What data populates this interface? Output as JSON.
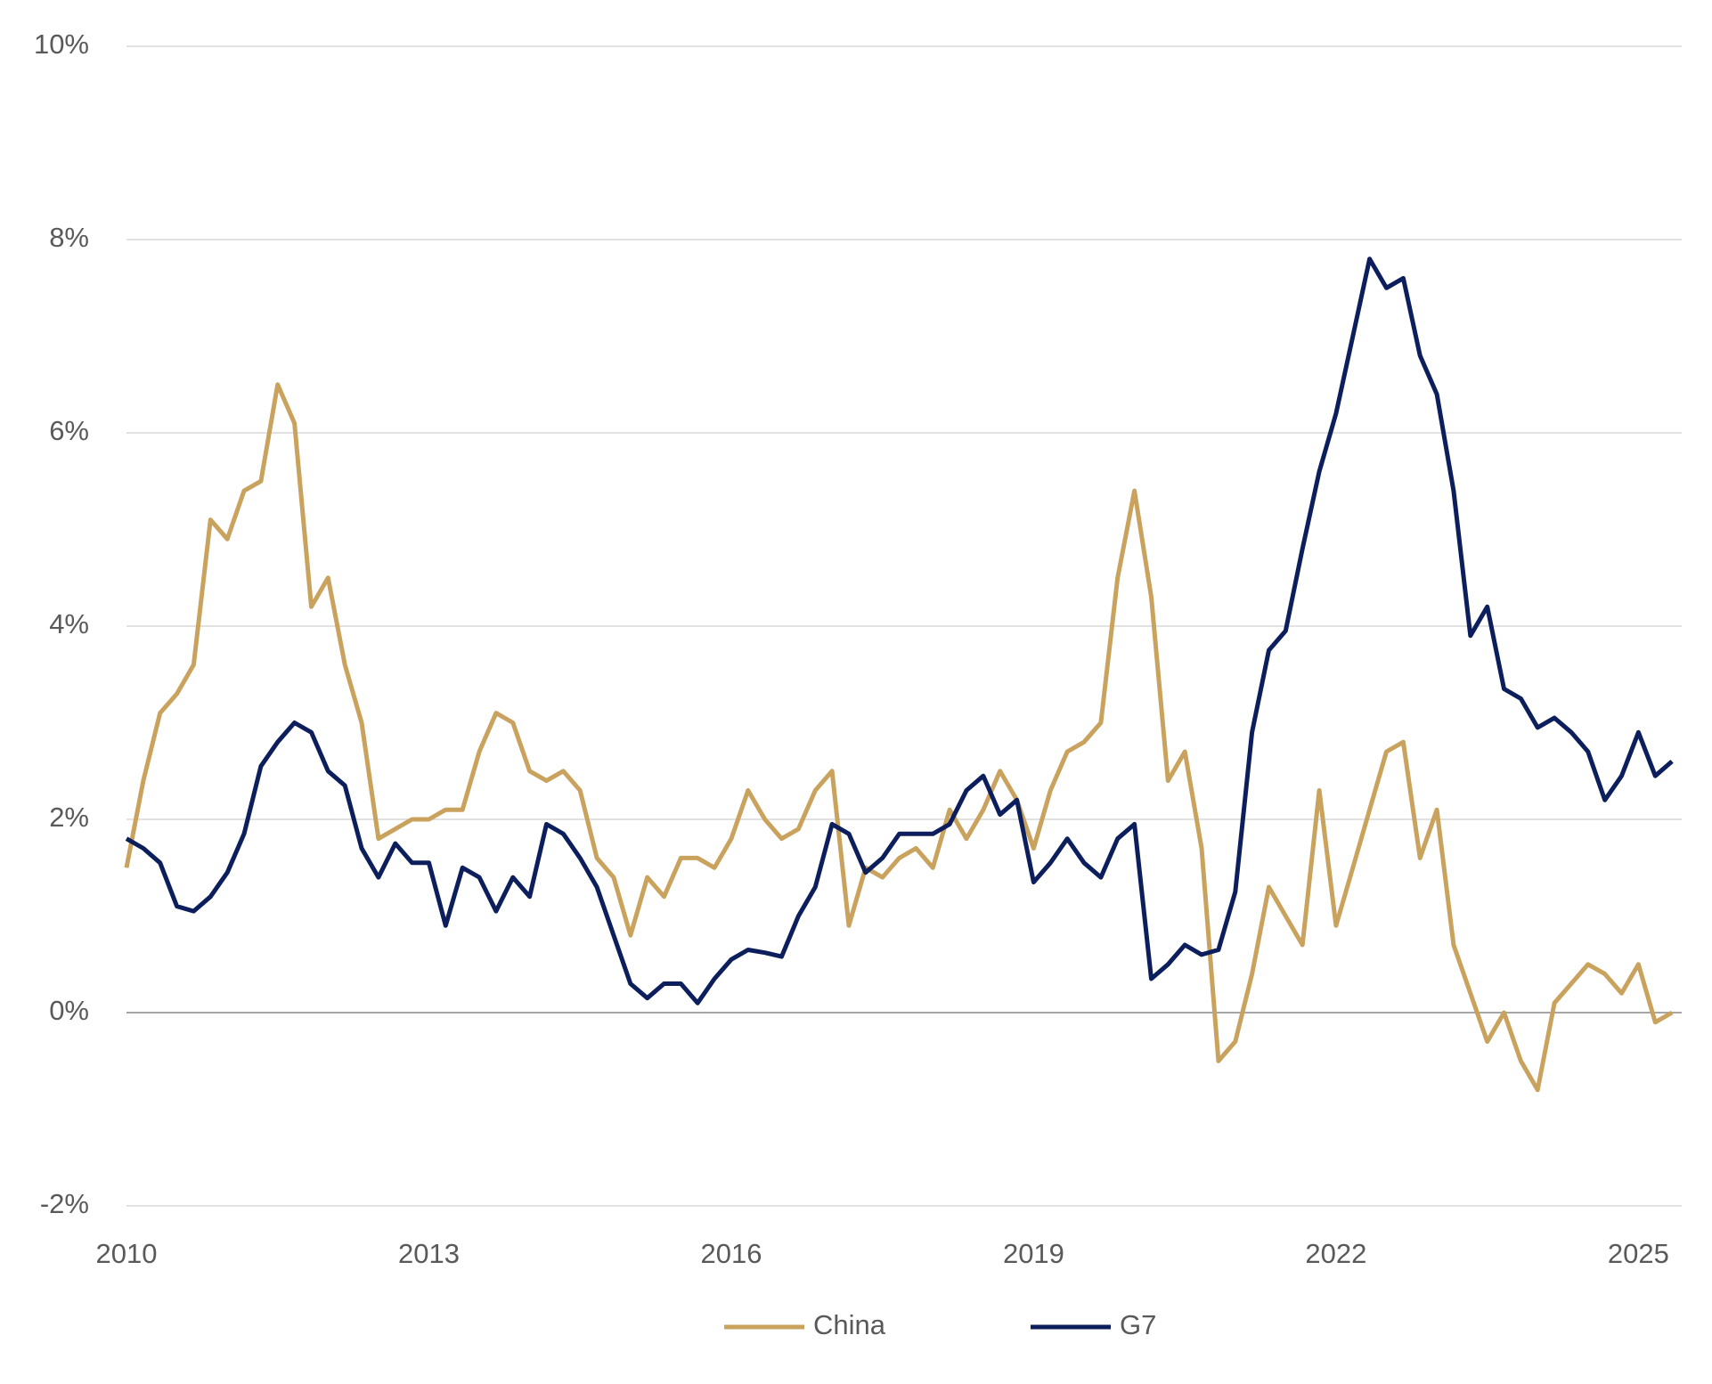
{
  "chart_data": {
    "type": "line",
    "categories": [
      "2010",
      null,
      null,
      null,
      null,
      null,
      null,
      null,
      null,
      null,
      null,
      null,
      null,
      null,
      null,
      null,
      null,
      null,
      "2013",
      null,
      null,
      null,
      null,
      null,
      null,
      null,
      null,
      null,
      null,
      null,
      null,
      null,
      null,
      null,
      null,
      null,
      "2016",
      null,
      null,
      null,
      null,
      null,
      null,
      null,
      null,
      null,
      null,
      null,
      null,
      null,
      null,
      null,
      null,
      null,
      "2019",
      null,
      null,
      null,
      null,
      null,
      null,
      null,
      null,
      null,
      null,
      null,
      null,
      null,
      null,
      null,
      null,
      null,
      "2022",
      null,
      null,
      null,
      null,
      null,
      null,
      null,
      null,
      null,
      null,
      null,
      null,
      null,
      null,
      null,
      null,
      null,
      "2025",
      null,
      null
    ],
    "series": [
      {
        "name": "China",
        "color": "#c9a35e",
        "values": [
          1.5,
          2.4,
          3.1,
          3.3,
          3.6,
          5.1,
          4.9,
          5.4,
          5.5,
          6.5,
          6.1,
          4.2,
          4.5,
          3.6,
          3.0,
          1.8,
          1.9,
          2.0,
          2.0,
          2.1,
          2.1,
          2.7,
          3.1,
          3.0,
          2.5,
          2.4,
          2.5,
          2.3,
          1.6,
          1.4,
          0.8,
          1.4,
          1.2,
          1.6,
          1.6,
          1.5,
          1.8,
          2.3,
          2.0,
          1.8,
          1.9,
          2.3,
          2.5,
          0.9,
          1.5,
          1.4,
          1.6,
          1.7,
          1.5,
          2.1,
          1.8,
          2.1,
          2.5,
          2.2,
          1.7,
          2.3,
          2.7,
          2.8,
          3.0,
          4.5,
          5.4,
          4.3,
          2.4,
          2.7,
          1.7,
          -0.5,
          -0.3,
          0.4,
          1.3,
          1.0,
          0.7,
          2.3,
          0.9,
          1.5,
          2.1,
          2.7,
          2.8,
          1.6,
          2.1,
          0.7,
          0.2,
          -0.3,
          0.0,
          -0.5,
          -0.8,
          0.1,
          0.3,
          0.5,
          0.4,
          0.2,
          0.5,
          -0.1,
          0.0
        ]
      },
      {
        "name": "G7",
        "color": "#0c1f5c",
        "values": [
          1.8,
          1.7,
          1.55,
          1.1,
          1.05,
          1.2,
          1.45,
          1.85,
          2.55,
          2.8,
          3.0,
          2.9,
          2.5,
          2.35,
          1.7,
          1.4,
          1.75,
          1.55,
          1.55,
          0.9,
          1.5,
          1.4,
          1.05,
          1.4,
          1.2,
          1.95,
          1.85,
          1.6,
          1.3,
          0.8,
          0.3,
          0.15,
          0.3,
          0.3,
          0.1,
          0.35,
          0.55,
          0.65,
          0.62,
          0.58,
          1.0,
          1.3,
          1.95,
          1.85,
          1.45,
          1.6,
          1.85,
          1.85,
          1.85,
          1.95,
          2.3,
          2.45,
          2.05,
          2.2,
          1.35,
          1.55,
          1.8,
          1.55,
          1.4,
          1.8,
          1.95,
          0.35,
          0.5,
          0.7,
          0.6,
          0.65,
          1.25,
          2.9,
          3.75,
          3.95,
          4.8,
          5.6,
          6.2,
          7.0,
          7.8,
          7.5,
          7.6,
          6.8,
          6.4,
          5.4,
          3.9,
          4.2,
          3.35,
          3.25,
          2.95,
          3.05,
          2.9,
          2.7,
          2.2,
          2.45,
          2.9,
          2.45,
          2.6
        ]
      }
    ],
    "ylim": [
      -2,
      10
    ],
    "yticks": [
      {
        "value": -2,
        "label": "-2%"
      },
      {
        "value": 0,
        "label": "0%"
      },
      {
        "value": 2,
        "label": "2%"
      },
      {
        "value": 4,
        "label": "4%"
      },
      {
        "value": 6,
        "label": "6%"
      },
      {
        "value": 8,
        "label": "8%"
      },
      {
        "value": 10,
        "label": "10%"
      }
    ],
    "grid": true
  }
}
